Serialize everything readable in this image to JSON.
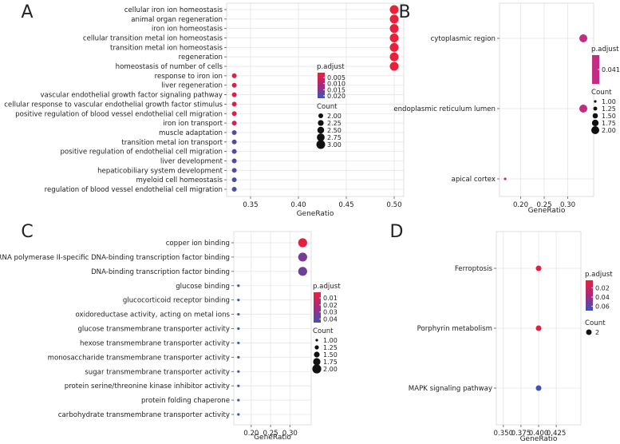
{
  "chart_data": [
    {
      "panel": "A",
      "type": "scatter",
      "xlabel": "GeneRatio",
      "xticks": [
        0.35,
        0.4,
        0.45,
        0.5
      ],
      "xlim": [
        0.325,
        0.51
      ],
      "terms": [
        {
          "label": "cellular iron ion homeostasis",
          "x": 0.5,
          "p": 0.001,
          "count": 3
        },
        {
          "label": "animal organ regeneration",
          "x": 0.5,
          "p": 0.001,
          "count": 3
        },
        {
          "label": "iron ion homeostasis",
          "x": 0.5,
          "p": 0.001,
          "count": 3
        },
        {
          "label": "cellular transition metal ion homeostasis",
          "x": 0.5,
          "p": 0.001,
          "count": 3
        },
        {
          "label": "transition metal ion homeostasis",
          "x": 0.5,
          "p": 0.001,
          "count": 3
        },
        {
          "label": "regeneration",
          "x": 0.5,
          "p": 0.001,
          "count": 3
        },
        {
          "label": "homeostasis of number of cells",
          "x": 0.5,
          "p": 0.001,
          "count": 3
        },
        {
          "label": "response to iron ion",
          "x": 0.333,
          "p": 0.003,
          "count": 2
        },
        {
          "label": "liver regeneration",
          "x": 0.333,
          "p": 0.003,
          "count": 2
        },
        {
          "label": "vascular endothelial growth factor signaling pathway",
          "x": 0.333,
          "p": 0.003,
          "count": 2
        },
        {
          "label": "cellular response to vascular endothelial growth factor stimulus",
          "x": 0.333,
          "p": 0.003,
          "count": 2
        },
        {
          "label": "positive regulation of blood vessel endothelial cell migration",
          "x": 0.333,
          "p": 0.003,
          "count": 2
        },
        {
          "label": "iron ion transport",
          "x": 0.333,
          "p": 0.004,
          "count": 2
        },
        {
          "label": "muscle adaptation",
          "x": 0.333,
          "p": 0.019,
          "count": 2
        },
        {
          "label": "transition metal ion transport",
          "x": 0.333,
          "p": 0.019,
          "count": 2
        },
        {
          "label": "positive regulation of endothelial cell migration",
          "x": 0.333,
          "p": 0.019,
          "count": 2
        },
        {
          "label": "liver development",
          "x": 0.333,
          "p": 0.02,
          "count": 2
        },
        {
          "label": "hepaticobiliary system development",
          "x": 0.333,
          "p": 0.02,
          "count": 2
        },
        {
          "label": "myeloid cell homeostasis",
          "x": 0.333,
          "p": 0.02,
          "count": 2
        },
        {
          "label": "regulation of blood vessel endothelial cell migration",
          "x": 0.333,
          "p": 0.02,
          "count": 2
        }
      ],
      "legend_padjust": {
        "title": "p.adjust",
        "ticks": [
          "0.005",
          "0.010",
          "0.015",
          "0.020"
        ],
        "range": [
          0.001,
          0.022
        ]
      },
      "legend_count": {
        "title": "Count",
        "values": [
          "2.00",
          "2.25",
          "2.50",
          "2.75",
          "3.00"
        ],
        "min": 2,
        "max": 3
      }
    },
    {
      "panel": "B",
      "type": "scatter",
      "xlabel": "GeneRatio",
      "xticks": [
        0.2,
        0.25,
        0.3
      ],
      "xlim": [
        0.155,
        0.355
      ],
      "terms": [
        {
          "label": "cytoplasmic region",
          "x": 0.333,
          "p": 0.0411,
          "count": 2
        },
        {
          "label": "endoplasmic reticulum lumen",
          "x": 0.333,
          "p": 0.0411,
          "count": 2
        },
        {
          "label": "apical cortex",
          "x": 0.167,
          "p": 0.0411,
          "count": 1
        }
      ],
      "legend_padjust": {
        "title": "p.adjust",
        "ticks": [
          "0.0411"
        ],
        "range": [
          0.0411,
          0.0411
        ]
      },
      "legend_count": {
        "title": "Count",
        "values": [
          "1.00",
          "1.25",
          "1.50",
          "1.75",
          "2.00"
        ],
        "min": 1,
        "max": 2
      }
    },
    {
      "panel": "C",
      "type": "scatter",
      "xlabel": "GeneRatio",
      "xticks": [
        0.2,
        0.25,
        0.3
      ],
      "xlim": [
        0.155,
        0.355
      ],
      "terms": [
        {
          "label": "copper ion binding",
          "x": 0.333,
          "p": 0.003,
          "count": 2
        },
        {
          "label": "RNA polymerase II-specific DNA-binding transcription factor binding",
          "x": 0.333,
          "p": 0.033,
          "count": 2
        },
        {
          "label": "DNA-binding transcription factor binding",
          "x": 0.333,
          "p": 0.035,
          "count": 2
        },
        {
          "label": "glucose binding",
          "x": 0.167,
          "p": 0.044,
          "count": 1
        },
        {
          "label": "glucocorticoid receptor binding",
          "x": 0.167,
          "p": 0.044,
          "count": 1
        },
        {
          "label": "oxidoreductase activity, acting on metal ions",
          "x": 0.167,
          "p": 0.044,
          "count": 1
        },
        {
          "label": "glucose transmembrane transporter activity",
          "x": 0.167,
          "p": 0.044,
          "count": 1
        },
        {
          "label": "hexose transmembrane transporter activity",
          "x": 0.167,
          "p": 0.044,
          "count": 1
        },
        {
          "label": "monosaccharide transmembrane transporter activity",
          "x": 0.167,
          "p": 0.044,
          "count": 1
        },
        {
          "label": "sugar transmembrane transporter activity",
          "x": 0.167,
          "p": 0.044,
          "count": 1
        },
        {
          "label": "protein serine/threonine kinase inhibitor activity",
          "x": 0.167,
          "p": 0.044,
          "count": 1
        },
        {
          "label": "protein folding chaperone",
          "x": 0.167,
          "p": 0.044,
          "count": 1
        },
        {
          "label": "carbohydrate transmembrane transporter activity",
          "x": 0.167,
          "p": 0.044,
          "count": 1
        }
      ],
      "legend_padjust": {
        "title": "p.adjust",
        "ticks": [
          "0.01",
          "0.02",
          "0.03",
          "0.04"
        ],
        "range": [
          0.002,
          0.045
        ]
      },
      "legend_count": {
        "title": "Count",
        "values": [
          "1.00",
          "1.25",
          "1.50",
          "1.75",
          "2.00"
        ],
        "min": 1,
        "max": 2
      }
    },
    {
      "panel": "D",
      "type": "scatter",
      "xlabel": "GeneRatio",
      "xticks": [
        0.35,
        0.375,
        0.4,
        0.425
      ],
      "xlim": [
        0.34,
        0.46
      ],
      "terms": [
        {
          "label": "Ferroptosis",
          "x": 0.4,
          "p": 0.004,
          "count": 2
        },
        {
          "label": "Porphyrin metabolism",
          "x": 0.4,
          "p": 0.004,
          "count": 2
        },
        {
          "label": "MAPK signaling pathway",
          "x": 0.4,
          "p": 0.068,
          "count": 2
        }
      ],
      "legend_padjust": {
        "title": "p.adjust",
        "ticks": [
          "0.02",
          "0.04",
          "0.06"
        ],
        "range": [
          0.003,
          0.07
        ]
      },
      "legend_count": {
        "title": "Count",
        "values": [
          "2"
        ],
        "min": 2,
        "max": 2
      }
    }
  ]
}
